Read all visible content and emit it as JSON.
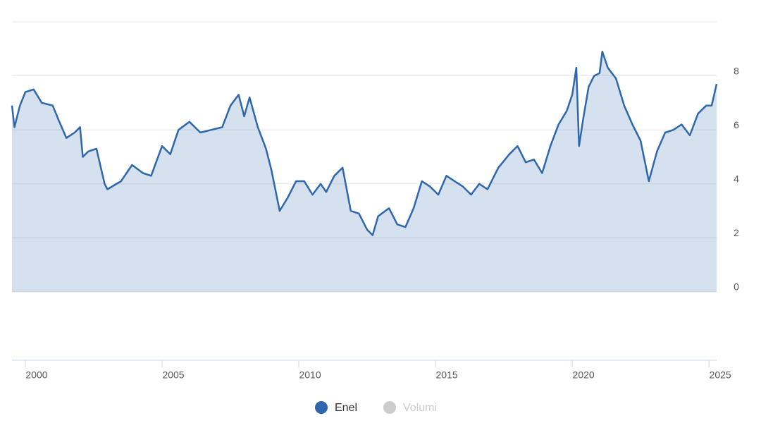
{
  "chart_data": {
    "type": "area",
    "x": [
      1999.51,
      1999.6,
      1999.8,
      2000.0,
      2000.3,
      2000.6,
      2001.0,
      2001.2,
      2001.5,
      2001.8,
      2002.0,
      2002.1,
      2002.3,
      2002.6,
      2002.9,
      2003.0,
      2003.5,
      2003.9,
      2004.3,
      2004.6,
      2005.0,
      2005.3,
      2005.6,
      2006.0,
      2006.4,
      2006.8,
      2007.2,
      2007.5,
      2007.8,
      2008.0,
      2008.2,
      2008.5,
      2008.8,
      2009.0,
      2009.3,
      2009.6,
      2009.9,
      2010.2,
      2010.5,
      2010.8,
      2011.0,
      2011.3,
      2011.6,
      2011.9,
      2012.2,
      2012.5,
      2012.7,
      2012.9,
      2013.3,
      2013.6,
      2013.9,
      2014.2,
      2014.5,
      2014.8,
      2015.1,
      2015.4,
      2015.7,
      2016.0,
      2016.3,
      2016.6,
      2016.9,
      2017.3,
      2017.7,
      2018.0,
      2018.3,
      2018.6,
      2018.9,
      2019.2,
      2019.5,
      2019.8,
      2020.0,
      2020.15,
      2020.25,
      2020.4,
      2020.6,
      2020.8,
      2021.0,
      2021.1,
      2021.3,
      2021.6,
      2021.9,
      2022.2,
      2022.5,
      2022.8,
      2023.1,
      2023.4,
      2023.7,
      2024.0,
      2024.3,
      2024.6,
      2024.9,
      2025.1,
      2025.28
    ],
    "series": [
      {
        "name": "Enel",
        "color": "#2e67ac",
        "values": [
          6.9,
          6.1,
          6.9,
          7.4,
          7.5,
          7.0,
          6.9,
          6.4,
          5.7,
          5.9,
          6.1,
          5.0,
          5.2,
          5.3,
          4.0,
          3.8,
          4.1,
          4.7,
          4.4,
          4.3,
          5.4,
          5.1,
          6.0,
          6.3,
          5.9,
          6.0,
          6.1,
          6.9,
          7.3,
          6.5,
          7.2,
          6.1,
          5.3,
          4.5,
          3.0,
          3.5,
          4.1,
          4.1,
          3.6,
          4.0,
          3.7,
          4.3,
          4.6,
          3.0,
          2.9,
          2.3,
          2.1,
          2.8,
          3.1,
          2.5,
          2.4,
          3.1,
          4.1,
          3.9,
          3.6,
          4.3,
          4.1,
          3.9,
          3.6,
          4.0,
          3.8,
          4.6,
          5.1,
          5.4,
          4.8,
          4.9,
          4.4,
          5.4,
          6.2,
          6.7,
          7.3,
          8.3,
          5.4,
          6.4,
          7.6,
          8.0,
          8.1,
          8.9,
          8.3,
          7.9,
          6.9,
          6.2,
          5.6,
          4.1,
          5.2,
          5.9,
          6.0,
          6.2,
          5.8,
          6.6,
          6.9,
          6.9,
          7.7
        ]
      },
      {
        "name": "Volumi",
        "color": "#cccccc",
        "visible": false
      }
    ],
    "xlim": [
      1999.51,
      2025.28
    ],
    "xticks": [
      2000,
      2005,
      2010,
      2015,
      2020,
      2025
    ],
    "ylim": [
      0,
      10
    ],
    "yticks": [
      0,
      2,
      4,
      6,
      8
    ],
    "grid": true
  }
}
